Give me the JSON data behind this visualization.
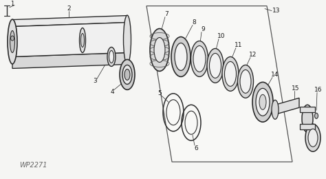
{
  "bg_color": "#f5f5f3",
  "line_color": "#2a2a2a",
  "lw": 1.0,
  "watermark": "WP2271",
  "parts": [
    1,
    2,
    3,
    4,
    5,
    6,
    7,
    8,
    9,
    10,
    11,
    12,
    13,
    14,
    15,
    16
  ]
}
